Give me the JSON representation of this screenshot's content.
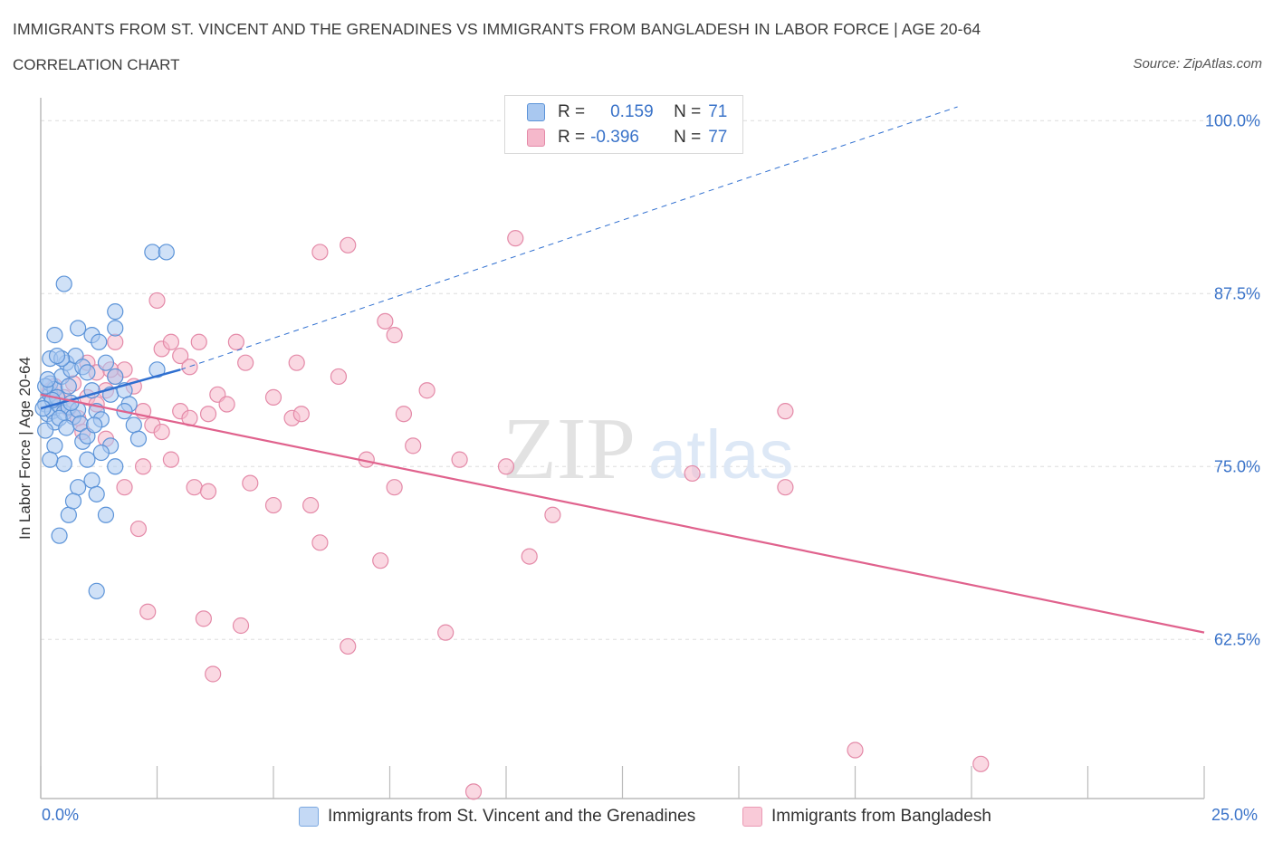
{
  "title": "IMMIGRANTS FROM ST. VINCENT AND THE GRENADINES VS IMMIGRANTS FROM BANGLADESH IN LABOR FORCE | AGE 20-64",
  "subtitle": "CORRELATION CHART",
  "source": "Source: ZipAtlas.com",
  "watermark": {
    "zip": "ZIP",
    "atlas": "atlas"
  },
  "legend": {
    "r_label": "R =",
    "n_label": "N =",
    "series1": {
      "r": "0.159",
      "n": "71"
    },
    "series2": {
      "r": "-0.396",
      "n": "77"
    }
  },
  "colors": {
    "series1_fill": "#a9c8f0",
    "series1_stroke": "#5b93d8",
    "series1_line": "#2f6fd0",
    "series2_fill": "#f5b8cb",
    "series2_stroke": "#e48aa8",
    "series2_line": "#e0628d",
    "tick_text": "#3a73c9",
    "grid": "#dddddd"
  },
  "chart_data": {
    "type": "scatter",
    "title": "IMMIGRANTS FROM ST. VINCENT AND THE GRENADINES VS IMMIGRANTS FROM BANGLADESH IN LABOR FORCE | AGE 20-64",
    "xlabel": "",
    "ylabel": "In Labor Force | Age 20-64",
    "xlim": [
      0,
      25
    ],
    "ylim": [
      51,
      101
    ],
    "x_tick_labels": [
      "0.0%",
      "25.0%"
    ],
    "y_ticks": [
      62.5,
      75.0,
      87.5,
      100.0
    ],
    "y_tick_labels": [
      "62.5%",
      "75.0%",
      "87.5%",
      "100.0%"
    ],
    "grid": true,
    "legend_position": "top-center",
    "series": [
      {
        "name": "Immigrants from St. Vincent and the Grenadines",
        "trend": {
          "x0": 0.0,
          "y0": 79.2,
          "x1": 3.0,
          "y1": 82.0,
          "dashed_to_x": 19.7,
          "dashed_to_y": 101
        },
        "points": [
          [
            0.1,
            79.5
          ],
          [
            0.15,
            78.8
          ],
          [
            0.2,
            80.2
          ],
          [
            0.25,
            79.0
          ],
          [
            0.3,
            78.2
          ],
          [
            0.1,
            77.6
          ],
          [
            0.2,
            81.0
          ],
          [
            0.3,
            80.6
          ],
          [
            0.4,
            79.4
          ],
          [
            0.5,
            78.9
          ],
          [
            0.6,
            79.3
          ],
          [
            0.7,
            78.6
          ],
          [
            0.8,
            79.1
          ],
          [
            0.35,
            80.0
          ],
          [
            0.45,
            81.5
          ],
          [
            0.55,
            82.5
          ],
          [
            0.65,
            82.0
          ],
          [
            0.75,
            83.0
          ],
          [
            0.9,
            82.2
          ],
          [
            1.0,
            81.8
          ],
          [
            1.1,
            80.5
          ],
          [
            1.2,
            79.0
          ],
          [
            1.3,
            78.4
          ],
          [
            1.4,
            82.5
          ],
          [
            1.5,
            80.2
          ],
          [
            1.6,
            81.5
          ],
          [
            1.8,
            80.5
          ],
          [
            1.9,
            79.5
          ],
          [
            2.0,
            78.0
          ],
          [
            2.1,
            77.0
          ],
          [
            0.3,
            76.5
          ],
          [
            0.5,
            75.2
          ],
          [
            0.6,
            71.5
          ],
          [
            0.4,
            70.0
          ],
          [
            0.8,
            73.5
          ],
          [
            0.7,
            72.5
          ],
          [
            1.0,
            75.5
          ],
          [
            1.1,
            74.0
          ],
          [
            1.2,
            73.0
          ],
          [
            1.4,
            71.5
          ],
          [
            0.9,
            76.8
          ],
          [
            1.5,
            76.5
          ],
          [
            1.6,
            75.0
          ],
          [
            0.2,
            75.5
          ],
          [
            1.3,
            76.0
          ],
          [
            0.5,
            88.2
          ],
          [
            0.8,
            85.0
          ],
          [
            1.1,
            84.5
          ],
          [
            1.6,
            86.2
          ],
          [
            1.6,
            85.0
          ],
          [
            0.3,
            84.5
          ],
          [
            1.8,
            79.0
          ],
          [
            2.4,
            90.5
          ],
          [
            2.7,
            90.5
          ],
          [
            2.5,
            82.0
          ],
          [
            1.2,
            66.0
          ],
          [
            0.2,
            82.8
          ],
          [
            0.1,
            80.8
          ],
          [
            0.25,
            79.8
          ],
          [
            0.4,
            78.5
          ],
          [
            0.55,
            77.8
          ],
          [
            0.65,
            79.6
          ],
          [
            0.85,
            78.1
          ],
          [
            1.0,
            77.2
          ],
          [
            1.15,
            78.0
          ],
          [
            0.45,
            82.8
          ],
          [
            1.25,
            84.0
          ],
          [
            0.15,
            81.3
          ],
          [
            0.35,
            83.0
          ],
          [
            0.6,
            80.8
          ],
          [
            0.05,
            79.2
          ]
        ]
      },
      {
        "name": "Immigrants from Bangladesh",
        "trend": {
          "x0": 0.0,
          "y0": 80.2,
          "x1": 25.0,
          "y1": 63.0
        },
        "points": [
          [
            0.2,
            80.5
          ],
          [
            0.4,
            79.8
          ],
          [
            0.5,
            80.0
          ],
          [
            0.6,
            79.2
          ],
          [
            0.8,
            78.5
          ],
          [
            1.0,
            80.0
          ],
          [
            1.2,
            79.5
          ],
          [
            1.4,
            80.5
          ],
          [
            1.6,
            81.5
          ],
          [
            1.8,
            82.0
          ],
          [
            2.0,
            80.8
          ],
          [
            2.2,
            79.0
          ],
          [
            2.4,
            78.0
          ],
          [
            2.6,
            77.5
          ],
          [
            1.0,
            82.5
          ],
          [
            1.2,
            81.8
          ],
          [
            1.5,
            82.0
          ],
          [
            1.6,
            84.0
          ],
          [
            2.5,
            87.0
          ],
          [
            2.6,
            83.5
          ],
          [
            2.8,
            84.0
          ],
          [
            3.0,
            83.0
          ],
          [
            3.2,
            82.2
          ],
          [
            3.4,
            84.0
          ],
          [
            3.0,
            79.0
          ],
          [
            3.2,
            78.5
          ],
          [
            3.6,
            78.8
          ],
          [
            3.8,
            80.2
          ],
          [
            4.0,
            79.5
          ],
          [
            4.2,
            84.0
          ],
          [
            4.4,
            82.5
          ],
          [
            2.2,
            75.0
          ],
          [
            2.8,
            75.5
          ],
          [
            3.3,
            73.5
          ],
          [
            3.6,
            73.2
          ],
          [
            4.5,
            73.8
          ],
          [
            5.0,
            72.2
          ],
          [
            5.4,
            78.5
          ],
          [
            5.6,
            78.8
          ],
          [
            5.8,
            72.2
          ],
          [
            6.0,
            69.5
          ],
          [
            6.4,
            81.5
          ],
          [
            7.0,
            75.5
          ],
          [
            7.3,
            68.2
          ],
          [
            7.6,
            73.5
          ],
          [
            7.8,
            78.8
          ],
          [
            8.0,
            76.5
          ],
          [
            8.3,
            80.5
          ],
          [
            9.0,
            75.5
          ],
          [
            10.0,
            75.0
          ],
          [
            10.5,
            68.5
          ],
          [
            11.0,
            71.5
          ],
          [
            14.0,
            74.5
          ],
          [
            16.0,
            73.5
          ],
          [
            16.0,
            79.0
          ],
          [
            5.5,
            82.5
          ],
          [
            5.0,
            80.0
          ],
          [
            6.0,
            90.5
          ],
          [
            6.6,
            91.0
          ],
          [
            10.2,
            91.5
          ],
          [
            7.4,
            85.5
          ],
          [
            7.6,
            84.5
          ],
          [
            6.6,
            62.0
          ],
          [
            4.3,
            63.5
          ],
          [
            3.5,
            64.0
          ],
          [
            2.3,
            64.5
          ],
          [
            3.7,
            60.0
          ],
          [
            2.1,
            70.5
          ],
          [
            17.5,
            54.5
          ],
          [
            20.2,
            53.5
          ],
          [
            9.3,
            51.5
          ],
          [
            8.7,
            63.0
          ],
          [
            1.8,
            73.5
          ],
          [
            1.4,
            77.0
          ],
          [
            0.9,
            77.5
          ],
          [
            0.3,
            80.8
          ],
          [
            0.7,
            81.0
          ]
        ]
      }
    ]
  }
}
